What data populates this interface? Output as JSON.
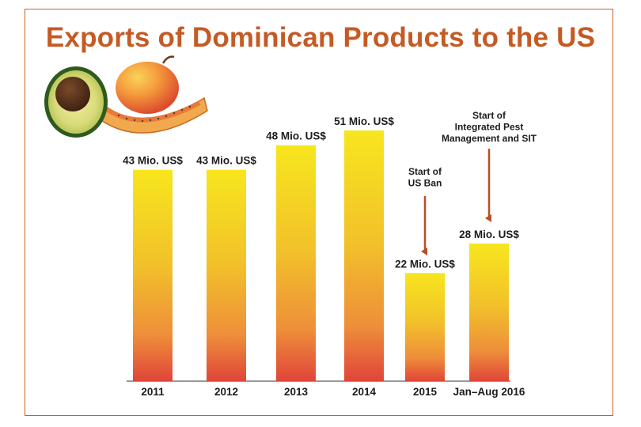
{
  "chart_data": {
    "type": "bar",
    "title": "Exports of Dominican Products to the US",
    "categories": [
      "2011",
      "2012",
      "2013",
      "2014",
      "2015",
      "Jan–Aug 2016"
    ],
    "values": [
      43,
      43,
      48,
      51,
      22,
      28
    ],
    "value_labels": [
      "43 Mio. US$",
      "43 Mio. US$",
      "48 Mio. US$",
      "51 Mio. US$",
      "22 Mio. US$",
      "28 Mio. US$"
    ],
    "unit": "Mio. US$",
    "ylim": [
      0,
      55
    ],
    "grid": false,
    "annotations": [
      {
        "category": "2015",
        "lines": [
          "Start of",
          "US Ban"
        ]
      },
      {
        "category": "Jan–Aug 2016",
        "lines": [
          "Start of",
          "Integrated Pest",
          "Management and SIT"
        ]
      }
    ]
  },
  "colors": {
    "title": "#c55a24",
    "frame": "#c9602a",
    "bar_top": "#f7e61e",
    "bar_mid": "#f2c12a",
    "bar_bottom": "#e0453a",
    "arrow": "#b94f22",
    "axis": "#333333"
  },
  "illustration": {
    "icons": [
      "avocado-icon",
      "mango-icon",
      "papaya-slice-icon"
    ]
  }
}
